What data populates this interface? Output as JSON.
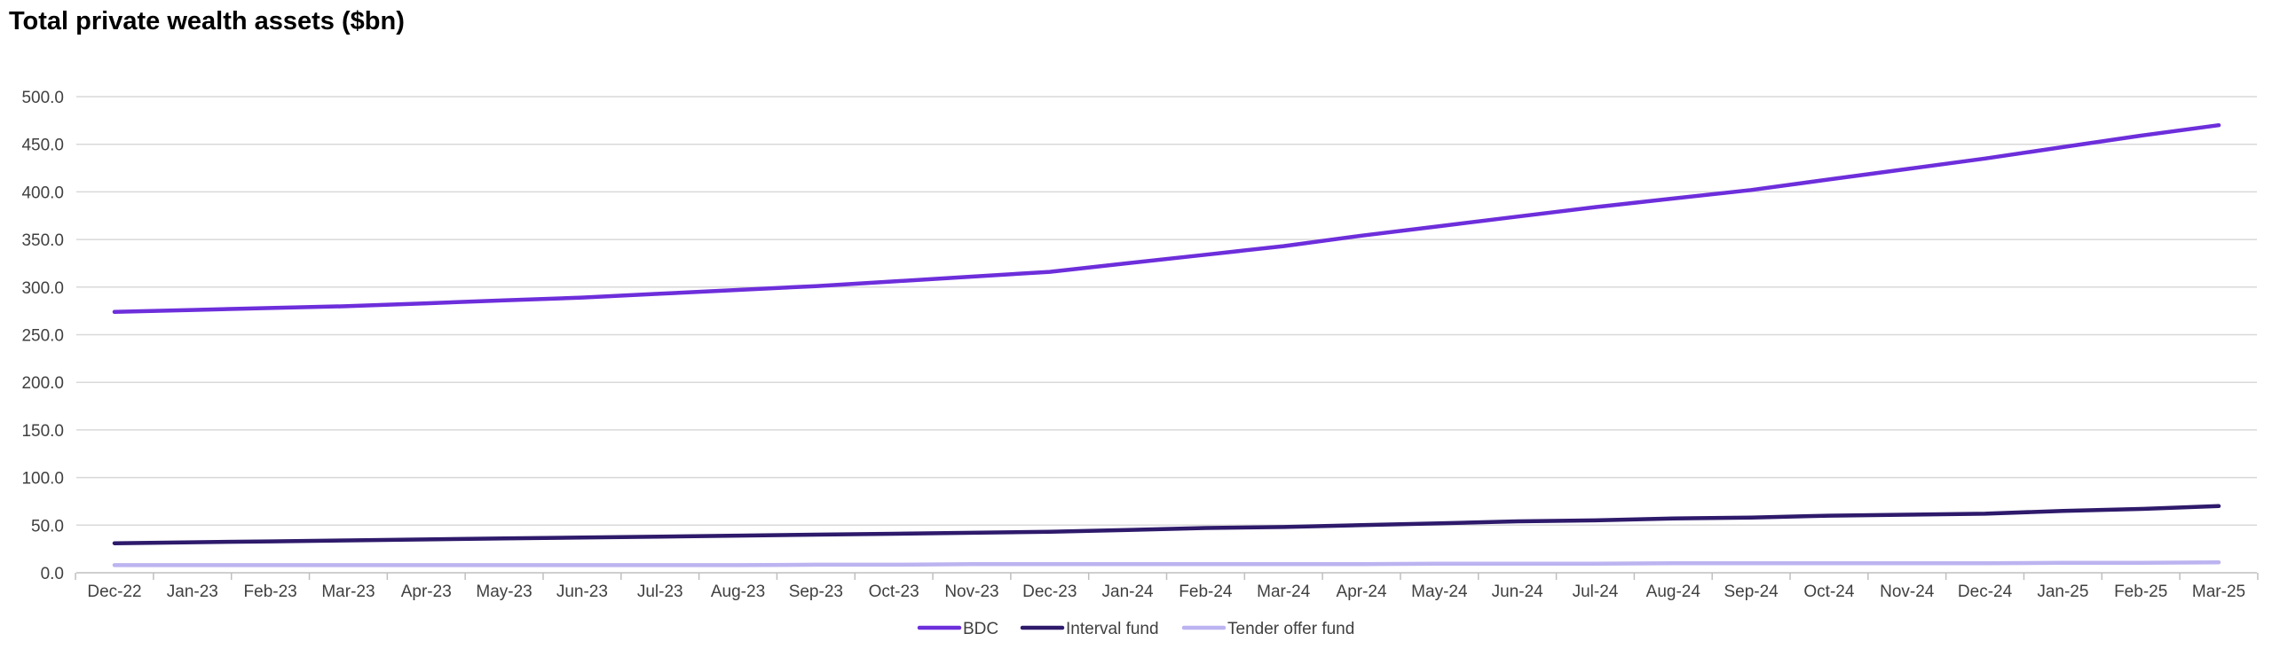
{
  "chart_data": {
    "type": "line",
    "title": "Total private wealth assets ($bn)",
    "xlabel": "",
    "ylabel": "",
    "categories": [
      "Dec-22",
      "Jan-23",
      "Feb-23",
      "Mar-23",
      "Apr-23",
      "May-23",
      "Jun-23",
      "Jul-23",
      "Aug-23",
      "Sep-23",
      "Oct-23",
      "Nov-23",
      "Dec-23",
      "Jan-24",
      "Feb-24",
      "Mar-24",
      "Apr-24",
      "May-24",
      "Jun-24",
      "Jul-24",
      "Aug-24",
      "Sep-24",
      "Oct-24",
      "Nov-24",
      "Dec-24",
      "Jan-25",
      "Feb-25",
      "Mar-25"
    ],
    "ylim": [
      0,
      500
    ],
    "yticks": [
      "0.0",
      "50.0",
      "100.0",
      "150.0",
      "200.0",
      "250.0",
      "300.0",
      "350.0",
      "400.0",
      "450.0",
      "500.0"
    ],
    "grid": true,
    "legend_position": "bottom",
    "series": [
      {
        "name": "BDC",
        "color": "#6D2EDB",
        "values": [
          274,
          276,
          278,
          280,
          283,
          286,
          289,
          293,
          297,
          301,
          306,
          311,
          316,
          325,
          334,
          343,
          354,
          364,
          374,
          384,
          393,
          402,
          413,
          424,
          435,
          447,
          459,
          470
        ]
      },
      {
        "name": "Interval fund",
        "color": "#2E1A6B",
        "values": [
          31,
          32,
          33,
          34,
          35,
          36,
          37,
          38,
          39,
          40,
          41,
          42,
          43,
          45,
          47,
          48,
          50,
          52,
          54,
          55,
          57,
          58,
          60,
          61,
          62,
          65,
          67,
          70
        ]
      },
      {
        "name": "Tender offer fund",
        "color": "#BCB4F0",
        "values": [
          8,
          8,
          8,
          8,
          8,
          8,
          8,
          8,
          8,
          8.5,
          8.5,
          9,
          9,
          9,
          9,
          9,
          9,
          9.5,
          9.5,
          9.5,
          10,
          10,
          10,
          10,
          10,
          10.5,
          10.5,
          11
        ]
      }
    ]
  }
}
